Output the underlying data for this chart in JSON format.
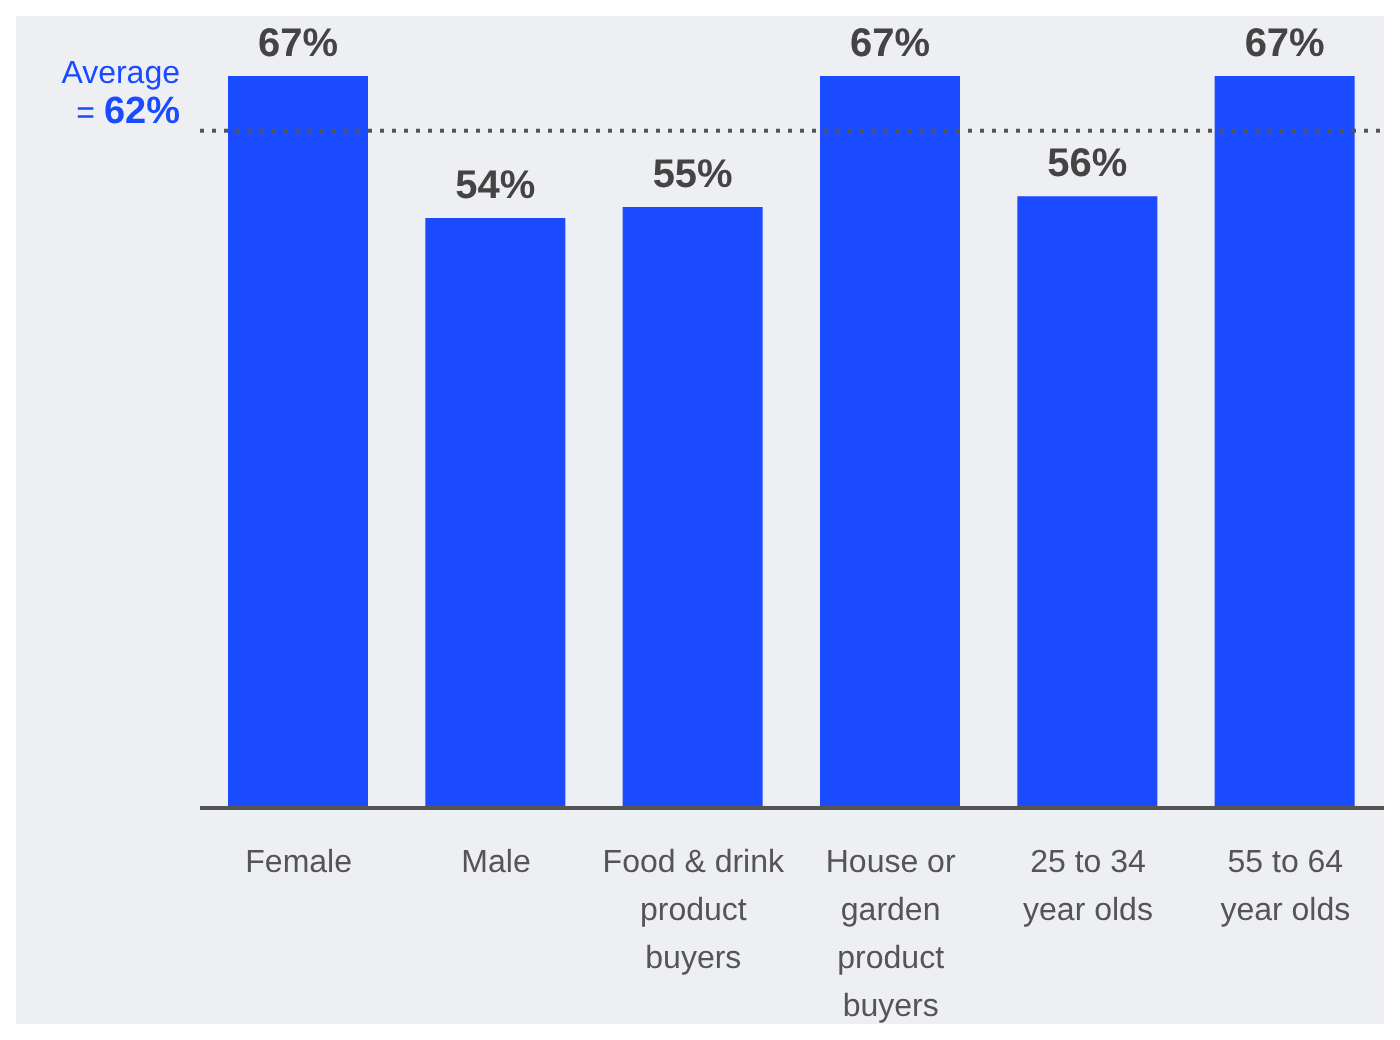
{
  "chart_data": {
    "type": "bar",
    "categories": [
      "Female",
      "Male",
      "Food & drink product buyers",
      "House or garden product buyers",
      "25 to 34 year olds",
      "55 to 64 year olds"
    ],
    "values": [
      67,
      54,
      55,
      67,
      56,
      67
    ],
    "color": "#1a4bff",
    "data_labels": true,
    "value_labels": [
      "67%",
      "54%",
      "55%",
      "67%",
      "56%",
      "67%"
    ],
    "ref_lines": [
      {
        "axis": "y",
        "value": 62,
        "label": "Average = 62%",
        "color": "#555555",
        "line_style": "dotted"
      }
    ],
    "grid": false,
    "legend": false,
    "tick_labels": "x"
  }
}
